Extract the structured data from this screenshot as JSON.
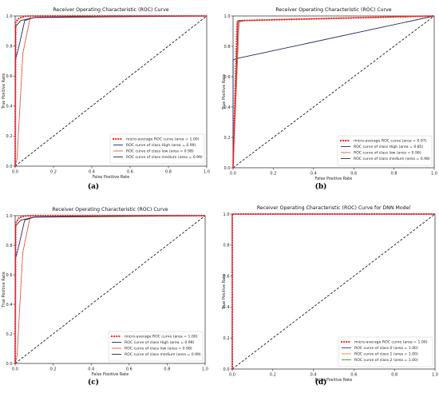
{
  "colors": {
    "micro": "#ff1f1f",
    "class_high": "#1f2a5c",
    "class_low": "#e8593c",
    "class_medium": "#2b2b2b",
    "navy": "#2c3e73",
    "orange": "#ff7f0e",
    "green": "#2ca02c",
    "diag": "#000000"
  },
  "chart_data": [
    {
      "type": "line",
      "caption": "(a)",
      "title": "Receiver Operating Characteristic (ROC) Curve",
      "xlabel": "False Positive Rate",
      "ylabel": "True Positive Rate",
      "xlim": [
        0,
        1
      ],
      "ylim": [
        0,
        1
      ],
      "xticks": [
        "0.0",
        "0.2",
        "0.4",
        "0.6",
        "0.8",
        "1.0"
      ],
      "yticks": [
        "0.0",
        "0.2",
        "0.4",
        "0.6",
        "0.8",
        "1.0"
      ],
      "legend_position": "lower-right",
      "series": [
        {
          "name": "micro-average ROC curve (area = 1.00)",
          "color_key": "micro",
          "dash": "dotted",
          "x": [
            0,
            0.003,
            0.02,
            0.05,
            0.1,
            1
          ],
          "y": [
            0,
            0.96,
            0.985,
            0.998,
            1.0,
            1.0
          ]
        },
        {
          "name": "ROC curve of class High (area = 0.99)",
          "color_key": "class_high",
          "dash": "solid",
          "x": [
            0,
            0,
            0.02,
            0.05,
            0.1,
            0.5,
            1
          ],
          "y": [
            0,
            0.7,
            0.8,
            0.97,
            0.99,
            1.0,
            1.0
          ]
        },
        {
          "name": "ROC curve of class low (area = 0.98)",
          "color_key": "class_low",
          "dash": "solid",
          "x": [
            0,
            0.01,
            0.04,
            0.08,
            1
          ],
          "y": [
            0,
            0.05,
            0.75,
            1.0,
            1.0
          ]
        },
        {
          "name": "ROC curve of class medium (area = 0.99)",
          "color_key": "class_medium",
          "dash": "solid",
          "x": [
            0,
            0.002,
            0.03,
            0.1,
            1
          ],
          "y": [
            0,
            0.93,
            0.97,
            0.99,
            1.0
          ]
        },
        {
          "name": "",
          "color_key": "diag",
          "dash": "dashed",
          "x": [
            0,
            1
          ],
          "y": [
            0,
            1
          ]
        }
      ]
    },
    {
      "type": "line",
      "caption": "(b)",
      "title": "Receiver Operating Characteristic (ROC) Curve",
      "xlabel": "False Positive Rate",
      "ylabel": "True Positive Rate",
      "xlim": [
        0,
        1
      ],
      "ylim": [
        0,
        1
      ],
      "xticks": [
        "0.0",
        "0.2",
        "0.4",
        "0.6",
        "0.8",
        "1.0"
      ],
      "yticks": [
        "0.0",
        "0.2",
        "0.4",
        "0.6",
        "0.8",
        "1.0"
      ],
      "legend_position": "lower-right",
      "series": [
        {
          "name": "micro-average ROC curve (area = 0.97)",
          "color_key": "micro",
          "dash": "dotted",
          "x": [
            0,
            0.02,
            0.05,
            1
          ],
          "y": [
            0,
            0.96,
            0.97,
            1.0
          ]
        },
        {
          "name": "ROC curve of class High (area = 0.85)",
          "color_key": "class_high",
          "dash": "solid",
          "x": [
            0,
            0,
            0.02,
            1
          ],
          "y": [
            0,
            0.71,
            0.72,
            1.0
          ]
        },
        {
          "name": "ROC curve of class low (area = 0.96)",
          "color_key": "class_low",
          "dash": "solid",
          "x": [
            0,
            0.03,
            0.06,
            1
          ],
          "y": [
            0,
            0.96,
            0.97,
            1.0
          ]
        },
        {
          "name": "ROC curve of class medium (area = 0.98)",
          "color_key": "class_medium",
          "dash": "solid",
          "x": [
            0,
            0.025,
            0.04,
            1
          ],
          "y": [
            0,
            0.97,
            0.97,
            1.0
          ]
        },
        {
          "name": "",
          "color_key": "diag",
          "dash": "dashed",
          "x": [
            0,
            1
          ],
          "y": [
            0,
            1
          ]
        }
      ]
    },
    {
      "type": "line",
      "caption": "(c)",
      "title": "Receiver Operating Characteristic (ROC) Curve",
      "xlabel": "False Positive Rate",
      "ylabel": "True Positive Rate",
      "xlim": [
        0,
        1
      ],
      "ylim": [
        0,
        1
      ],
      "xticks": [
        "0.0",
        "0.2",
        "0.4",
        "0.6",
        "0.8",
        "1.0"
      ],
      "yticks": [
        "0.0",
        "0.2",
        "0.4",
        "0.6",
        "0.8",
        "1.0"
      ],
      "legend_position": "lower-right",
      "series": [
        {
          "name": "micro-average ROC curve (area = 1.00)",
          "color_key": "micro",
          "dash": "dotted",
          "x": [
            0,
            0.003,
            0.02,
            0.05,
            0.1,
            1
          ],
          "y": [
            0,
            0.95,
            0.985,
            0.998,
            1.0,
            1.0
          ]
        },
        {
          "name": "ROC curve of class High (area = 0.99)",
          "color_key": "class_high",
          "dash": "solid",
          "x": [
            0,
            0,
            0.02,
            0.05,
            0.1,
            0.5,
            1
          ],
          "y": [
            0,
            0.7,
            0.8,
            0.97,
            0.99,
            1.0,
            1.0
          ]
        },
        {
          "name": "ROC curve of class low (area = 0.98)",
          "color_key": "class_low",
          "dash": "solid",
          "x": [
            0,
            0.01,
            0.04,
            0.08,
            1
          ],
          "y": [
            0,
            0.05,
            0.75,
            1.0,
            1.0
          ]
        },
        {
          "name": "ROC curve of class medium (area = 0.99)",
          "color_key": "class_medium",
          "dash": "solid",
          "x": [
            0,
            0.002,
            0.03,
            0.1,
            1
          ],
          "y": [
            0,
            0.93,
            0.97,
            0.99,
            1.0
          ]
        },
        {
          "name": "",
          "color_key": "diag",
          "dash": "dashed",
          "x": [
            0,
            1
          ],
          "y": [
            0,
            1
          ]
        }
      ]
    },
    {
      "type": "line",
      "caption": "(d)",
      "title": "Receiver Operating Characteristic (ROC) Curve for DNN Model",
      "xlabel": "False Positive Rate",
      "ylabel": "True Positive Rate",
      "xlim": [
        0,
        1
      ],
      "ylim": [
        0,
        1
      ],
      "xticks": [
        "0.0",
        "0.2",
        "0.4",
        "0.6",
        "0.8",
        "1.0"
      ],
      "yticks": [
        "0.0",
        "0.2",
        "0.4",
        "0.6",
        "0.8",
        "1.0"
      ],
      "legend_position": "lower-right",
      "series": [
        {
          "name": "micro-average ROC curve (area = 1.00)",
          "color_key": "micro",
          "dash": "dotted",
          "x": [
            0,
            0,
            1
          ],
          "y": [
            0,
            1.0,
            1.0
          ]
        },
        {
          "name": "ROC curve of class 0 (area = 1.00)",
          "color_key": "navy",
          "dash": "solid",
          "x": [
            0,
            0,
            1
          ],
          "y": [
            0,
            1.0,
            1.0
          ]
        },
        {
          "name": "ROC curve of class 1 (area = 1.00)",
          "color_key": "orange",
          "dash": "solid",
          "x": [
            0,
            0,
            1
          ],
          "y": [
            0,
            1.0,
            1.0
          ]
        },
        {
          "name": "ROC curve of class 2 (area = 1.00)",
          "color_key": "green",
          "dash": "solid",
          "x": [
            0,
            0,
            1
          ],
          "y": [
            0,
            1.0,
            1.0
          ]
        },
        {
          "name": "",
          "color_key": "diag",
          "dash": "dashed",
          "x": [
            0,
            1
          ],
          "y": [
            0,
            1
          ]
        }
      ]
    }
  ]
}
